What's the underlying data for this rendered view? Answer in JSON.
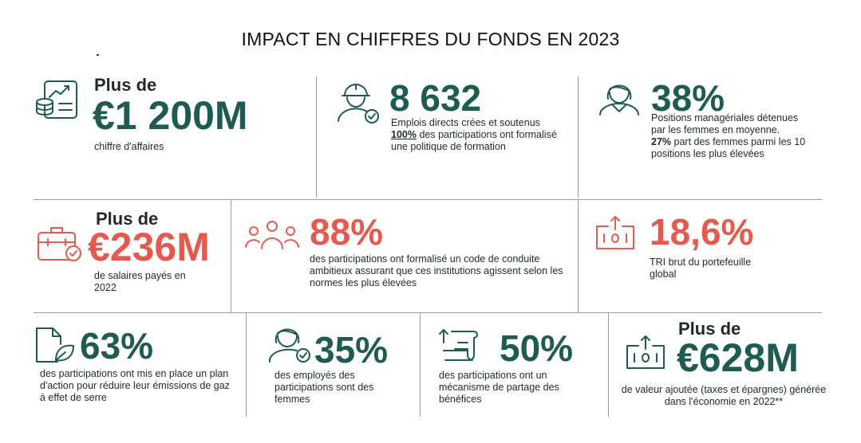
{
  "title": "IMPACT EN CHIFFRES DU FONDS EN 2023",
  "colors": {
    "green": "#1e5b53",
    "red": "#e55a4e",
    "divider": "#9a9a9a"
  },
  "cells": {
    "revenue": {
      "icon": "revenue-chart-icon",
      "prefix": "Plus de",
      "value": "€1 200M",
      "desc": "chiffre d'affaires"
    },
    "jobs": {
      "icon": "worker-helmet-icon",
      "value": "8 632",
      "desc1": "Emplois directs crées et soutenus",
      "desc_bold": "100%",
      "desc2": " des participations ont formalisé une politique de formation"
    },
    "women_mgmt": {
      "icon": "woman-user-icon",
      "value": "38%",
      "desc1": "Positions managériales détenues par les femmes en moyenne.",
      "desc_bold": "27%",
      "desc2": " part des femmes parmi les 10 positions les plus élevées"
    },
    "salaries": {
      "icon": "briefcase-check-icon",
      "prefix": "Plus de",
      "value": "€236M",
      "desc": "de salaires payés en 2022"
    },
    "conduct": {
      "icon": "people-group-icon",
      "value": "88%",
      "desc": "des participations ont formalisé un code de conduite ambitieux assurant que ces institutions agissent selon les normes les plus élevées"
    },
    "tri": {
      "icon": "money-upload-icon",
      "value": "18,6%",
      "desc": "TRI brut du portefeuille global"
    },
    "ghg": {
      "icon": "document-leaf-icon",
      "value": "63%",
      "desc": "des participations ont mis en place un plan d'action pour réduire leur émissions de gaz à effet de serre"
    },
    "employees_women": {
      "icon": "woman-check-icon",
      "value": "35%",
      "desc": "des employés des participations sont des femmes"
    },
    "profit_sharing": {
      "icon": "document-arrow-icon",
      "value": "50%",
      "desc": "des participations ont un mécanisme de partage des bénéfices"
    },
    "value_added": {
      "icon": "money-upload-icon",
      "prefix": "Plus de",
      "value": "€628M",
      "desc": "de valeur ajoutée (taxes et épargnes) générée dans l'économie en 2022**"
    }
  }
}
